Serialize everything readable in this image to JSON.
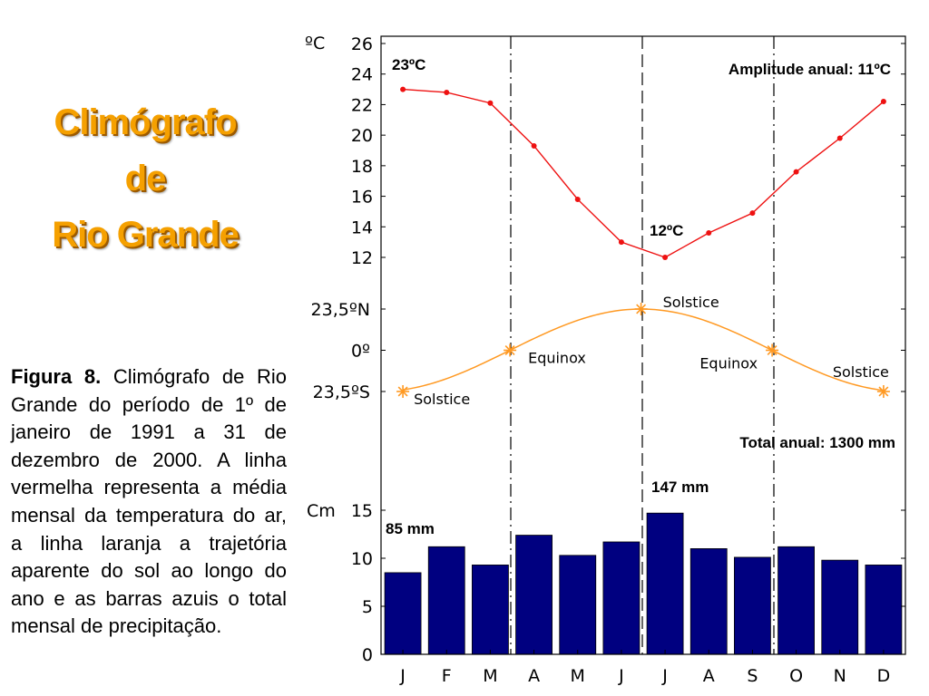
{
  "title": {
    "line1": "Climógrafo",
    "line2": "de",
    "line3": "Rio Grande"
  },
  "caption": {
    "label": "Figura 8.",
    "text": " Climógrafo de Rio Grande do período de 1º de janeiro de 1991 a 31 de dezembro de 2000. A linha vermelha representa a média mensal da temperatura do ar, a linha laranja a trajetória aparente do sol ao longo do ano e as barras azuis o total mensal de precipitação."
  },
  "colors": {
    "title": "#f5a000",
    "temperature": "#ee1111",
    "sun": "#ff9922",
    "precipitation": "#000080"
  },
  "chart_data": {
    "type": "combo",
    "months": [
      "J",
      "F",
      "M",
      "A",
      "M",
      "J",
      "J",
      "A",
      "S",
      "O",
      "N",
      "D"
    ],
    "temperature": {
      "unit_label": "ºC",
      "ylim": [
        11,
        26
      ],
      "yticks": [
        12,
        14,
        16,
        18,
        20,
        22,
        24,
        26
      ],
      "values": [
        23.0,
        22.8,
        22.1,
        19.3,
        15.8,
        13.0,
        12.0,
        13.6,
        14.9,
        17.6,
        19.8,
        22.2
      ],
      "max_label": "23ºC",
      "min_label": "12ºC",
      "amplitude_label": "Amplitude anual: 11ºC"
    },
    "sun_path": {
      "ytick_labels": [
        "23,5ºN",
        "0º",
        "23,5ºS"
      ],
      "markers": [
        {
          "month_index": 0,
          "lat": -23.5,
          "label": "Solstice"
        },
        {
          "month_index": 2.45,
          "lat": 0,
          "label": "Equinox"
        },
        {
          "month_index": 5.45,
          "lat": 23.5,
          "label": "Solstice"
        },
        {
          "month_index": 8.45,
          "lat": 0,
          "label": "Equinox"
        },
        {
          "month_index": 11,
          "lat": -23.5,
          "label": "Solstice"
        }
      ]
    },
    "precipitation": {
      "unit_label": "Cm",
      "ylim": [
        0,
        16.5
      ],
      "yticks": [
        0,
        5,
        10,
        15
      ],
      "values": [
        8.5,
        11.2,
        9.3,
        12.4,
        10.3,
        11.7,
        14.7,
        11.0,
        10.1,
        11.2,
        9.8,
        9.3
      ],
      "min_label": "85 mm",
      "max_label": "147  mm",
      "total_label": "Total anual: 1300 mm"
    }
  }
}
